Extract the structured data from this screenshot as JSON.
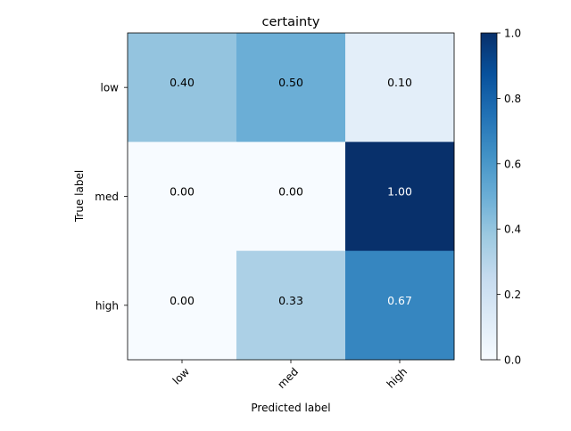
{
  "chart_data": {
    "type": "heatmap",
    "title": "certainty",
    "xlabel": "Predicted label",
    "ylabel": "True label",
    "x_categories": [
      "low",
      "med",
      "high"
    ],
    "y_categories": [
      "low",
      "med",
      "high"
    ],
    "values": [
      [
        0.4,
        0.5,
        0.1
      ],
      [
        0.0,
        0.0,
        1.0
      ],
      [
        0.0,
        0.33,
        0.67
      ]
    ],
    "cell_labels": [
      [
        "0.40",
        "0.50",
        "0.10"
      ],
      [
        "0.00",
        "0.00",
        "1.00"
      ],
      [
        "0.00",
        "0.33",
        "0.67"
      ]
    ],
    "colormap": "Blues",
    "colorbar": {
      "range": [
        0.0,
        1.0
      ],
      "ticks": [
        "0.0",
        "0.2",
        "0.4",
        "0.6",
        "0.8",
        "1.0"
      ]
    },
    "grid": false
  }
}
